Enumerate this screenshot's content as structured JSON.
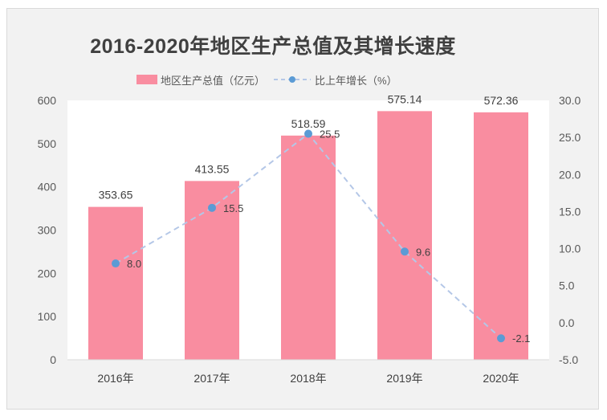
{
  "chart_data": {
    "type": "bar",
    "title": "2016-2020年地区生产总值及其增长速度",
    "categories": [
      "2016年",
      "2017年",
      "2018年",
      "2019年",
      "2020年"
    ],
    "series": [
      {
        "name": "地区生产总值（亿元）",
        "type": "bar",
        "axis": "left",
        "values": [
          353.65,
          413.55,
          518.59,
          575.14,
          572.36
        ],
        "labels": [
          "353.65",
          "413.55",
          "518.59",
          "575.14",
          "572.36"
        ],
        "color": "#f98da0"
      },
      {
        "name": "比上年增长（%）",
        "type": "line",
        "axis": "right",
        "values": [
          8.0,
          15.5,
          25.5,
          9.6,
          -2.1
        ],
        "labels": [
          "8.0",
          "15.5",
          "25.5",
          "9.6",
          "-2.1"
        ],
        "color": "#5b9bd5",
        "line_color": "#b4c7e7",
        "dashed": true
      }
    ],
    "y_left": {
      "ylim": [
        0,
        600
      ],
      "ticks": [
        "0",
        "100",
        "200",
        "300",
        "400",
        "500",
        "600"
      ]
    },
    "y_right": {
      "ylim": [
        -5,
        30
      ],
      "ticks": [
        "-5.0",
        "0.0",
        "5.0",
        "10.0",
        "15.0",
        "20.0",
        "25.0",
        "30.0"
      ]
    },
    "legend_position": "top",
    "grid": false,
    "background": "#f2f2f2",
    "plot_background": "#ffffff"
  }
}
